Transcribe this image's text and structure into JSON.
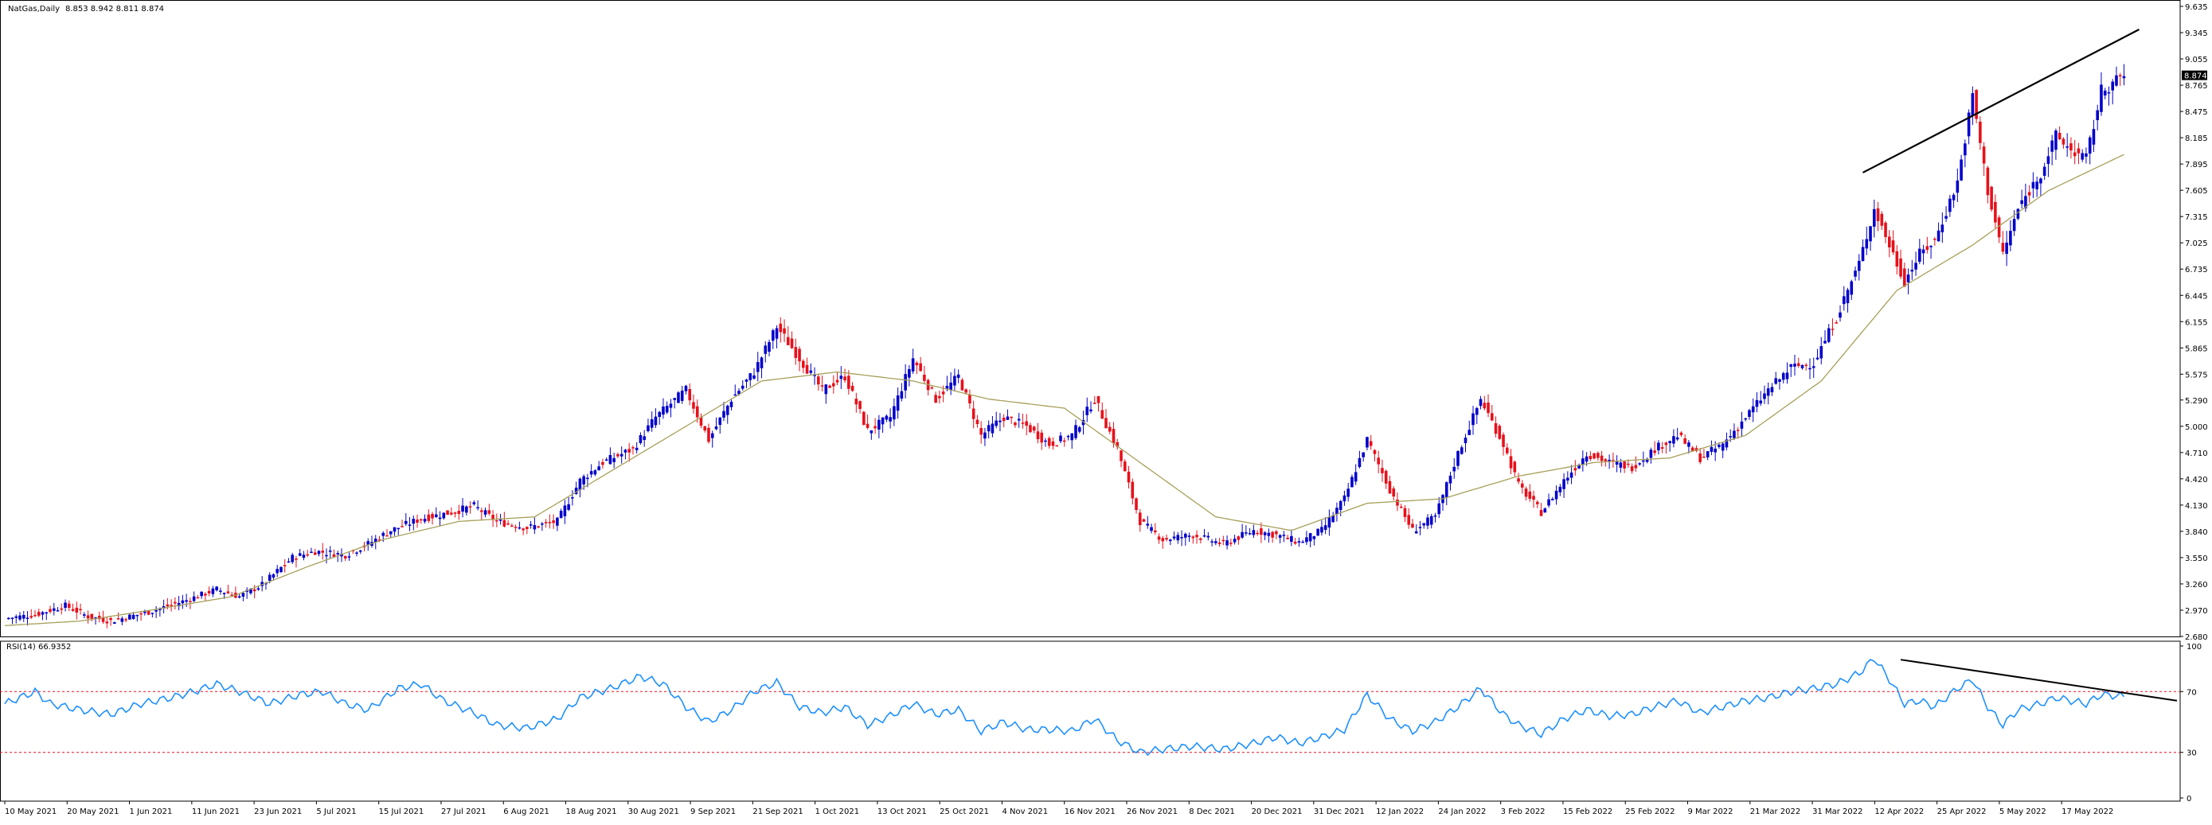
{
  "chart_data": [
    {
      "type": "candlestick",
      "title": "NatGas,Daily",
      "ohlc_label": "8.853 8.942 8.811 8.874",
      "last_price_label": "8.874",
      "ylim": [
        2.68,
        9.635
      ],
      "yticks": [
        "9.635",
        "9.345",
        "9.055",
        "8.765",
        "8.475",
        "8.185",
        "7.895",
        "7.605",
        "7.315",
        "7.025",
        "6.735",
        "6.445",
        "6.155",
        "5.865",
        "5.575",
        "5.290",
        "5.000",
        "4.710",
        "4.420",
        "4.130",
        "3.840",
        "3.550",
        "3.260",
        "2.970",
        "2.680"
      ],
      "xtick_labels": [
        "10 May 2021",
        "20 May 2021",
        "1 Jun 2021",
        "11 Jun 2021",
        "23 Jun 2021",
        "5 Jul 2021",
        "15 Jul 2021",
        "27 Jul 2021",
        "6 Aug 2021",
        "18 Aug 2021",
        "30 Aug 2021",
        "9 Sep 2021",
        "21 Sep 2021",
        "1 Oct 2021",
        "13 Oct 2021",
        "25 Oct 2021",
        "4 Nov 2021",
        "16 Nov 2021",
        "26 Nov 2021",
        "8 Dec 2021",
        "20 Dec 2021",
        "31 Dec 2021",
        "12 Jan 2022",
        "24 Jan 2022",
        "3 Feb 2022",
        "15 Feb 2022",
        "25 Feb 2022",
        "9 Mar 2022",
        "21 Mar 2022",
        "31 Mar 2022",
        "12 Apr 2022",
        "25 Apr 2022",
        "5 May 2022",
        "17 May 2022"
      ],
      "close_path": [
        [
          0,
          2.88
        ],
        [
          8,
          2.92
        ],
        [
          16,
          3.02
        ],
        [
          22,
          2.9
        ],
        [
          28,
          2.85
        ],
        [
          38,
          2.95
        ],
        [
          48,
          3.08
        ],
        [
          56,
          3.2
        ],
        [
          62,
          3.12
        ],
        [
          68,
          3.25
        ],
        [
          76,
          3.55
        ],
        [
          82,
          3.62
        ],
        [
          90,
          3.58
        ],
        [
          96,
          3.7
        ],
        [
          102,
          3.85
        ],
        [
          110,
          3.98
        ],
        [
          118,
          4.05
        ],
        [
          124,
          4.12
        ],
        [
          130,
          3.95
        ],
        [
          138,
          3.88
        ],
        [
          146,
          3.95
        ],
        [
          152,
          4.4
        ],
        [
          158,
          4.6
        ],
        [
          166,
          4.75
        ],
        [
          172,
          5.1
        ],
        [
          180,
          5.4
        ],
        [
          186,
          4.85
        ],
        [
          192,
          5.3
        ],
        [
          198,
          5.6
        ],
        [
          204,
          6.1
        ],
        [
          210,
          5.75
        ],
        [
          216,
          5.4
        ],
        [
          222,
          5.55
        ],
        [
          228,
          4.95
        ],
        [
          234,
          5.1
        ],
        [
          240,
          5.75
        ],
        [
          246,
          5.3
        ],
        [
          252,
          5.55
        ],
        [
          258,
          4.9
        ],
        [
          264,
          5.1
        ],
        [
          270,
          5.0
        ],
        [
          276,
          4.8
        ],
        [
          282,
          4.9
        ],
        [
          288,
          5.3
        ],
        [
          294,
          4.75
        ],
        [
          300,
          3.95
        ],
        [
          306,
          3.75
        ],
        [
          314,
          3.8
        ],
        [
          322,
          3.7
        ],
        [
          330,
          3.85
        ],
        [
          336,
          3.8
        ],
        [
          342,
          3.72
        ],
        [
          348,
          3.85
        ],
        [
          354,
          4.2
        ],
        [
          360,
          4.85
        ],
        [
          366,
          4.3
        ],
        [
          372,
          3.85
        ],
        [
          378,
          4.0
        ],
        [
          384,
          4.7
        ],
        [
          390,
          5.3
        ],
        [
          396,
          4.8
        ],
        [
          400,
          4.35
        ],
        [
          406,
          4.05
        ],
        [
          412,
          4.4
        ],
        [
          418,
          4.7
        ],
        [
          424,
          4.6
        ],
        [
          430,
          4.55
        ],
        [
          436,
          4.75
        ],
        [
          442,
          4.9
        ],
        [
          448,
          4.65
        ],
        [
          454,
          4.8
        ],
        [
          460,
          5.1
        ],
        [
          466,
          5.4
        ],
        [
          472,
          5.65
        ],
        [
          478,
          5.7
        ],
        [
          484,
          6.2
        ],
        [
          490,
          6.8
        ],
        [
          494,
          7.4
        ],
        [
          498,
          7.0
        ],
        [
          502,
          6.6
        ],
        [
          506,
          6.9
        ],
        [
          510,
          7.05
        ],
        [
          516,
          7.7
        ],
        [
          520,
          8.65
        ],
        [
          524,
          7.6
        ],
        [
          528,
          6.9
        ],
        [
          532,
          7.4
        ],
        [
          538,
          7.8
        ],
        [
          542,
          8.2
        ],
        [
          546,
          8.05
        ],
        [
          550,
          7.95
        ],
        [
          554,
          8.7
        ],
        [
          560,
          8.874
        ]
      ],
      "ma_path": [
        [
          0,
          2.8
        ],
        [
          20,
          2.85
        ],
        [
          40,
          2.98
        ],
        [
          60,
          3.12
        ],
        [
          80,
          3.45
        ],
        [
          100,
          3.75
        ],
        [
          120,
          3.95
        ],
        [
          140,
          4.0
        ],
        [
          160,
          4.5
        ],
        [
          180,
          5.0
        ],
        [
          200,
          5.5
        ],
        [
          220,
          5.6
        ],
        [
          240,
          5.5
        ],
        [
          260,
          5.3
        ],
        [
          280,
          5.2
        ],
        [
          300,
          4.6
        ],
        [
          320,
          4.0
        ],
        [
          340,
          3.85
        ],
        [
          360,
          4.15
        ],
        [
          380,
          4.2
        ],
        [
          400,
          4.45
        ],
        [
          420,
          4.6
        ],
        [
          440,
          4.65
        ],
        [
          460,
          4.9
        ],
        [
          480,
          5.5
        ],
        [
          500,
          6.5
        ],
        [
          520,
          7.0
        ],
        [
          540,
          7.6
        ],
        [
          560,
          8.0
        ]
      ],
      "trendline": [
        [
          491,
          7.8
        ],
        [
          564,
          9.38
        ]
      ]
    },
    {
      "type": "line",
      "title": "RSI(14) 66.9352",
      "ylim": [
        0,
        100
      ],
      "yticks": [
        "100",
        "70",
        "30",
        "0"
      ],
      "levels": [
        70,
        30
      ],
      "values_path": [
        [
          0,
          62
        ],
        [
          8,
          70
        ],
        [
          12,
          62
        ],
        [
          20,
          58
        ],
        [
          28,
          55
        ],
        [
          36,
          62
        ],
        [
          44,
          66
        ],
        [
          50,
          70
        ],
        [
          56,
          75
        ],
        [
          62,
          70
        ],
        [
          70,
          62
        ],
        [
          78,
          68
        ],
        [
          84,
          70
        ],
        [
          90,
          62
        ],
        [
          96,
          58
        ],
        [
          104,
          72
        ],
        [
          110,
          75
        ],
        [
          116,
          64
        ],
        [
          124,
          56
        ],
        [
          130,
          48
        ],
        [
          138,
          46
        ],
        [
          146,
          52
        ],
        [
          152,
          66
        ],
        [
          160,
          72
        ],
        [
          168,
          80
        ],
        [
          174,
          75
        ],
        [
          180,
          60
        ],
        [
          186,
          50
        ],
        [
          192,
          58
        ],
        [
          198,
          70
        ],
        [
          204,
          76
        ],
        [
          210,
          60
        ],
        [
          216,
          56
        ],
        [
          222,
          60
        ],
        [
          228,
          48
        ],
        [
          234,
          54
        ],
        [
          240,
          62
        ],
        [
          246,
          55
        ],
        [
          252,
          58
        ],
        [
          258,
          44
        ],
        [
          264,
          50
        ],
        [
          270,
          45
        ],
        [
          276,
          45
        ],
        [
          282,
          44
        ],
        [
          288,
          52
        ],
        [
          294,
          38
        ],
        [
          300,
          30
        ],
        [
          306,
          32
        ],
        [
          314,
          34
        ],
        [
          322,
          32
        ],
        [
          330,
          36
        ],
        [
          336,
          40
        ],
        [
          342,
          36
        ],
        [
          348,
          40
        ],
        [
          354,
          45
        ],
        [
          360,
          68
        ],
        [
          366,
          52
        ],
        [
          372,
          44
        ],
        [
          378,
          50
        ],
        [
          384,
          60
        ],
        [
          390,
          72
        ],
        [
          396,
          55
        ],
        [
          400,
          48
        ],
        [
          406,
          42
        ],
        [
          412,
          52
        ],
        [
          418,
          58
        ],
        [
          424,
          54
        ],
        [
          430,
          55
        ],
        [
          436,
          60
        ],
        [
          442,
          64
        ],
        [
          448,
          56
        ],
        [
          454,
          60
        ],
        [
          460,
          64
        ],
        [
          466,
          66
        ],
        [
          472,
          70
        ],
        [
          478,
          72
        ],
        [
          484,
          75
        ],
        [
          490,
          82
        ],
        [
          494,
          92
        ],
        [
          498,
          78
        ],
        [
          502,
          62
        ],
        [
          506,
          64
        ],
        [
          510,
          60
        ],
        [
          516,
          72
        ],
        [
          520,
          78
        ],
        [
          524,
          60
        ],
        [
          528,
          48
        ],
        [
          532,
          58
        ],
        [
          538,
          62
        ],
        [
          542,
          66
        ],
        [
          546,
          64
        ],
        [
          550,
          62
        ],
        [
          554,
          68
        ],
        [
          560,
          66.9
        ]
      ],
      "trendline": [
        [
          501,
          91
        ],
        [
          574,
          64
        ]
      ]
    }
  ]
}
